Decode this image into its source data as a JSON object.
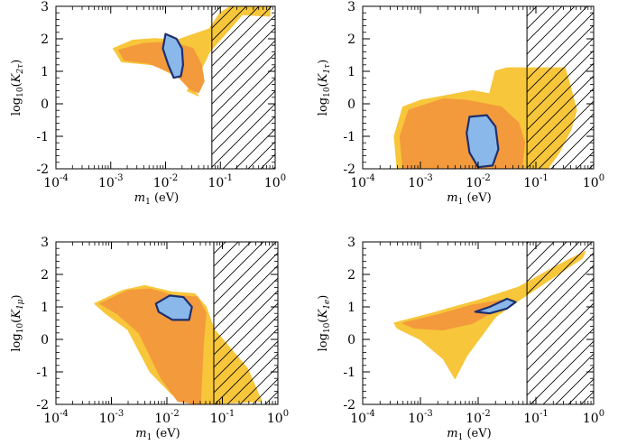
{
  "chart_data": [
    {
      "type": "scatter",
      "title": "",
      "xscale": "log",
      "xlim": [
        0.0001,
        1
      ],
      "ylim": [
        -2,
        3
      ],
      "xlabel": {
        "main": "m",
        "sub": "1",
        "unit": "(eV)"
      },
      "ylabel": {
        "prefix": "log",
        "prefix_sub": "10",
        "var": "K",
        "var_sub": "2τ"
      },
      "xticks": [
        {
          "base": "10",
          "exp": "-4",
          "value": -4
        },
        {
          "base": "10",
          "exp": "-3",
          "value": -3
        },
        {
          "base": "10",
          "exp": "-2",
          "value": -2
        },
        {
          "base": "10",
          "exp": "-1",
          "value": -1
        },
        {
          "base": "10",
          "exp": "0",
          "value": 0
        }
      ],
      "yticks": [
        "3",
        "2",
        "1",
        "0",
        "-1",
        "-2"
      ],
      "excluded_region": {
        "m1_min_eV": 0.07,
        "style": "hatched"
      },
      "series": [
        {
          "color": "#f7c63a",
          "points": [
            [
              -2.95,
              1.7
            ],
            [
              -2.6,
              1.95
            ],
            [
              -2.2,
              2.0
            ],
            [
              -1.8,
              1.95
            ],
            [
              -1.2,
              2.3
            ],
            [
              -1.0,
              2.8
            ],
            [
              -0.8,
              3.0
            ],
            [
              -0.1,
              3.0
            ],
            [
              -0.1,
              2.7
            ],
            [
              -0.6,
              2.75
            ],
            [
              -1.2,
              1.6
            ],
            [
              -1.4,
              0.9
            ],
            [
              -1.6,
              0.4
            ],
            [
              -1.4,
              0.25
            ],
            [
              -1.75,
              0.8
            ],
            [
              -2.2,
              1.2
            ],
            [
              -2.8,
              1.3
            ]
          ]
        },
        {
          "color": "#f39a3c",
          "points": [
            [
              -2.85,
              1.65
            ],
            [
              -2.4,
              1.85
            ],
            [
              -1.9,
              1.9
            ],
            [
              -1.5,
              1.7
            ],
            [
              -1.35,
              1.2
            ],
            [
              -1.3,
              0.7
            ],
            [
              -1.4,
              0.35
            ],
            [
              -1.55,
              0.45
            ],
            [
              -1.8,
              0.9
            ],
            [
              -2.3,
              1.25
            ],
            [
              -2.75,
              1.35
            ]
          ]
        },
        {
          "color": "#8ab8ea",
          "points": [
            [
              -2.0,
              2.15
            ],
            [
              -1.8,
              2.0
            ],
            [
              -1.7,
              1.7
            ],
            [
              -1.68,
              1.2
            ],
            [
              -1.72,
              0.85
            ],
            [
              -1.85,
              0.8
            ],
            [
              -1.95,
              1.2
            ],
            [
              -2.05,
              1.7
            ]
          ]
        }
      ]
    },
    {
      "type": "scatter",
      "title": "",
      "xscale": "log",
      "xlim": [
        0.0001,
        1
      ],
      "ylim": [
        -2,
        3
      ],
      "xlabel": {
        "main": "m",
        "sub": "1",
        "unit": "(eV)"
      },
      "ylabel": {
        "prefix": "log",
        "prefix_sub": "10",
        "var": "K",
        "var_sub": "1τ"
      },
      "xticks": [
        {
          "base": "10",
          "exp": "-4",
          "value": -4
        },
        {
          "base": "10",
          "exp": "-3",
          "value": -3
        },
        {
          "base": "10",
          "exp": "-2",
          "value": -2
        },
        {
          "base": "10",
          "exp": "-1",
          "value": -1
        },
        {
          "base": "10",
          "exp": "0",
          "value": 0
        }
      ],
      "yticks": [
        "3",
        "2",
        "1",
        "0",
        "-1",
        "-2"
      ],
      "excluded_region": {
        "m1_min_eV": 0.07,
        "style": "hatched"
      },
      "series": [
        {
          "color": "#f7c63a",
          "points": [
            [
              -3.3,
              -0.1
            ],
            [
              -3.0,
              0.1
            ],
            [
              -2.4,
              0.3
            ],
            [
              -2.1,
              0.4
            ],
            [
              -1.8,
              0.3
            ],
            [
              -1.7,
              1.0
            ],
            [
              -1.5,
              1.1
            ],
            [
              -0.5,
              1.1
            ],
            [
              -0.4,
              0.5
            ],
            [
              -0.3,
              -0.2
            ],
            [
              -0.4,
              -0.8
            ],
            [
              -0.6,
              -1.5
            ],
            [
              -0.8,
              -2.0
            ],
            [
              -3.4,
              -2.0
            ],
            [
              -3.45,
              -1.0
            ]
          ]
        },
        {
          "color": "#f39a3c",
          "points": [
            [
              -3.2,
              -0.2
            ],
            [
              -2.6,
              0.15
            ],
            [
              -2.2,
              0.1
            ],
            [
              -1.6,
              -0.1
            ],
            [
              -1.3,
              -0.6
            ],
            [
              -1.2,
              -1.2
            ],
            [
              -1.25,
              -2.0
            ],
            [
              -3.3,
              -2.0
            ],
            [
              -3.35,
              -1.0
            ]
          ]
        },
        {
          "color": "#8ab8ea",
          "points": [
            [
              -2.15,
              -0.4
            ],
            [
              -1.85,
              -0.35
            ],
            [
              -1.7,
              -0.7
            ],
            [
              -1.65,
              -1.4
            ],
            [
              -1.75,
              -1.9
            ],
            [
              -2.0,
              -1.95
            ],
            [
              -2.15,
              -1.5
            ],
            [
              -2.2,
              -0.9
            ]
          ]
        }
      ]
    },
    {
      "type": "scatter",
      "title": "",
      "xscale": "log",
      "xlim": [
        0.0001,
        1
      ],
      "ylim": [
        -2,
        3
      ],
      "xlabel": {
        "main": "m",
        "sub": "1",
        "unit": "(eV)"
      },
      "ylabel": {
        "prefix": "log",
        "prefix_sub": "10",
        "var": "K",
        "var_sub": "1μ"
      },
      "xticks": [
        {
          "base": "10",
          "exp": "-4",
          "value": -4
        },
        {
          "base": "10",
          "exp": "-3",
          "value": -3
        },
        {
          "base": "10",
          "exp": "-2",
          "value": -2
        },
        {
          "base": "10",
          "exp": "-1",
          "value": -1
        },
        {
          "base": "10",
          "exp": "0",
          "value": 0
        }
      ],
      "yticks": [
        "3",
        "2",
        "1",
        "0",
        "-1",
        "-2"
      ],
      "excluded_region": {
        "m1_min_eV": 0.07,
        "style": "hatched"
      },
      "series": [
        {
          "color": "#f7c63a",
          "points": [
            [
              -3.3,
              1.1
            ],
            [
              -2.8,
              1.5
            ],
            [
              -2.4,
              1.65
            ],
            [
              -1.9,
              1.45
            ],
            [
              -1.5,
              1.4
            ],
            [
              -1.3,
              1.0
            ],
            [
              -1.15,
              0.3
            ],
            [
              -0.9,
              -0.2
            ],
            [
              -0.55,
              -0.9
            ],
            [
              -0.3,
              -1.9
            ],
            [
              -1.4,
              -2.0
            ],
            [
              -1.9,
              -1.7
            ],
            [
              -2.3,
              -1.0
            ],
            [
              -2.7,
              0.3
            ],
            [
              -3.1,
              0.8
            ]
          ]
        },
        {
          "color": "#f39a3c",
          "points": [
            [
              -3.2,
              1.1
            ],
            [
              -2.7,
              1.5
            ],
            [
              -2.3,
              1.55
            ],
            [
              -1.9,
              1.35
            ],
            [
              -1.45,
              1.3
            ],
            [
              -1.3,
              0.8
            ],
            [
              -1.35,
              -0.2
            ],
            [
              -1.4,
              -2.0
            ],
            [
              -1.8,
              -1.9
            ],
            [
              -2.1,
              -1.2
            ],
            [
              -2.5,
              0.2
            ],
            [
              -2.9,
              0.8
            ]
          ]
        },
        {
          "color": "#8ab8ea",
          "points": [
            [
              -2.2,
              1.1
            ],
            [
              -1.95,
              1.35
            ],
            [
              -1.7,
              1.3
            ],
            [
              -1.55,
              1.0
            ],
            [
              -1.6,
              0.6
            ],
            [
              -1.9,
              0.6
            ],
            [
              -2.15,
              0.85
            ]
          ]
        }
      ]
    },
    {
      "type": "scatter",
      "title": "",
      "xscale": "log",
      "xlim": [
        0.0001,
        1
      ],
      "ylim": [
        -2,
        3
      ],
      "xlabel": {
        "main": "m",
        "sub": "1",
        "unit": "(eV)"
      },
      "ylabel": {
        "prefix": "log",
        "prefix_sub": "10",
        "var": "K",
        "var_sub": "1e"
      },
      "xticks": [
        {
          "base": "10",
          "exp": "-4",
          "value": -4
        },
        {
          "base": "10",
          "exp": "-3",
          "value": -3
        },
        {
          "base": "10",
          "exp": "-2",
          "value": -2
        },
        {
          "base": "10",
          "exp": "-1",
          "value": -1
        },
        {
          "base": "10",
          "exp": "0",
          "value": 0
        }
      ],
      "yticks": [
        "3",
        "2",
        "1",
        "0",
        "-1",
        "-2"
      ],
      "excluded_region": {
        "m1_min_eV": 0.07,
        "style": "hatched"
      },
      "series": [
        {
          "color": "#f7c63a",
          "points": [
            [
              -3.45,
              0.5
            ],
            [
              -2.8,
              0.8
            ],
            [
              -2.0,
              1.2
            ],
            [
              -1.3,
              1.6
            ],
            [
              -0.7,
              2.2
            ],
            [
              -0.15,
              2.7
            ],
            [
              -0.2,
              2.5
            ],
            [
              -0.8,
              1.8
            ],
            [
              -1.3,
              1.2
            ],
            [
              -1.7,
              0.7
            ],
            [
              -2.2,
              -0.5
            ],
            [
              -2.4,
              -1.2
            ],
            [
              -2.6,
              -0.6
            ],
            [
              -3.0,
              0.0
            ],
            [
              -3.4,
              0.35
            ]
          ]
        },
        {
          "color": "#f39a3c",
          "points": [
            [
              -3.3,
              0.5
            ],
            [
              -2.7,
              0.75
            ],
            [
              -2.1,
              1.05
            ],
            [
              -1.6,
              1.2
            ],
            [
              -1.4,
              1.2
            ],
            [
              -1.7,
              0.9
            ],
            [
              -2.1,
              0.5
            ],
            [
              -2.6,
              0.3
            ],
            [
              -3.1,
              0.35
            ]
          ]
        },
        {
          "color": "#8ab8ea",
          "points": [
            [
              -2.05,
              0.85
            ],
            [
              -1.8,
              1.0
            ],
            [
              -1.5,
              1.25
            ],
            [
              -1.35,
              1.15
            ],
            [
              -1.5,
              0.95
            ],
            [
              -1.8,
              0.8
            ]
          ]
        }
      ]
    }
  ]
}
